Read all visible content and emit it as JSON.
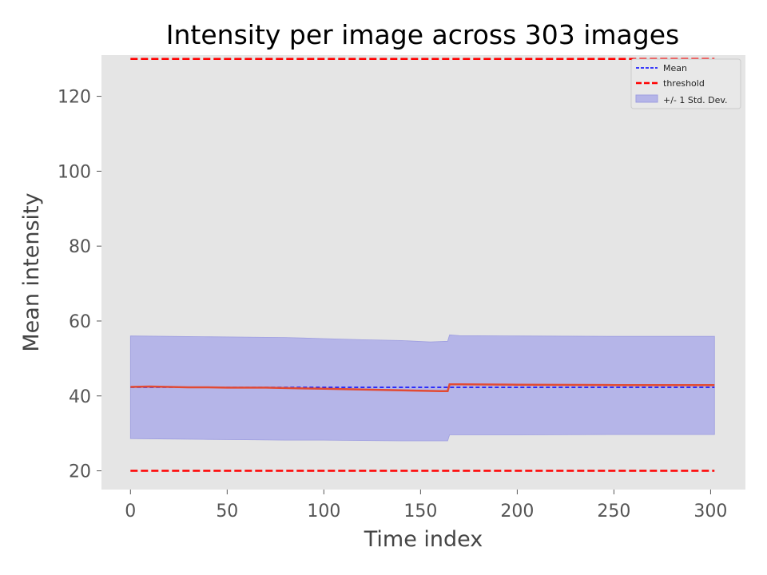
{
  "chart_data": {
    "type": "line",
    "title": "Intensity per image across 303 images",
    "xlabel": "Time index",
    "ylabel": "Mean intensity",
    "xlim": [
      -15,
      318
    ],
    "ylim": [
      15,
      131
    ],
    "x_ticks": [
      0,
      50,
      100,
      150,
      200,
      250,
      300
    ],
    "y_ticks": [
      20,
      40,
      60,
      80,
      100,
      120
    ],
    "grid": false,
    "legend": {
      "placement": "top-right",
      "entries": [
        "Mean",
        "threshold",
        "+/- 1 Std. Dev."
      ]
    },
    "x_range": [
      0,
      302
    ],
    "mean": 42.3,
    "thresholds": [
      20,
      130
    ],
    "series": [
      {
        "label": "intensity",
        "x": [
          0,
          10,
          20,
          30,
          40,
          50,
          60,
          70,
          80,
          90,
          100,
          110,
          120,
          130,
          140,
          150,
          160,
          164,
          165,
          170,
          200,
          250,
          302
        ],
        "y": [
          42.4,
          42.5,
          42.4,
          42.3,
          42.3,
          42.2,
          42.2,
          42.2,
          42.1,
          42.0,
          41.9,
          41.8,
          41.7,
          41.6,
          41.5,
          41.4,
          41.3,
          41.3,
          43.1,
          43.1,
          43.0,
          42.9,
          42.9
        ]
      }
    ],
    "band": {
      "x": [
        0,
        20,
        40,
        60,
        80,
        100,
        120,
        140,
        155,
        164,
        165,
        170,
        200,
        250,
        302
      ],
      "upper": [
        56.0,
        55.9,
        55.8,
        55.7,
        55.6,
        55.3,
        55.0,
        54.8,
        54.4,
        54.6,
        56.3,
        56.1,
        56.0,
        55.9,
        55.9
      ],
      "lower": [
        28.6,
        28.5,
        28.4,
        28.3,
        28.2,
        28.2,
        28.1,
        28.0,
        28.0,
        28.0,
        29.6,
        29.6,
        29.6,
        29.7,
        29.7
      ]
    },
    "colors": {
      "background": "#e5e5e5",
      "mean": "#0000ff",
      "threshold": "#ff0000",
      "band_fill": "#b5b5e8",
      "band_edge": "#9e9ee0",
      "intensity": "#e24a33"
    }
  }
}
